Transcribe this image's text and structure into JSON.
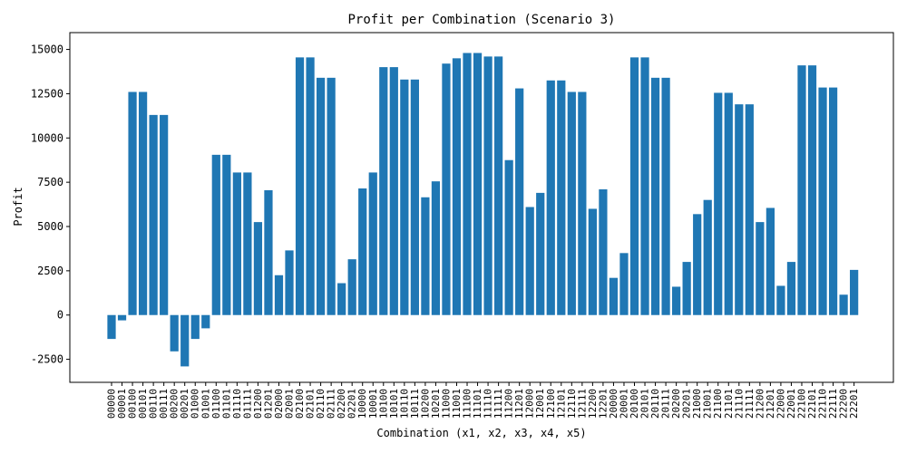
{
  "chart_data": {
    "type": "bar",
    "title": "Profit per Combination (Scenario 3)",
    "xlabel": "Combination (x1, x2, x3, x4, x5)",
    "ylabel": "Profit",
    "ylim": [
      -3800,
      15950
    ],
    "yticks": [
      -2500,
      0,
      2500,
      5000,
      7500,
      10000,
      12500,
      15000
    ],
    "grid": false,
    "bar_color": "#1f77b4",
    "categories": [
      "00000",
      "00001",
      "00100",
      "00101",
      "00110",
      "00111",
      "00200",
      "00201",
      "01000",
      "01001",
      "01100",
      "01101",
      "01110",
      "01111",
      "01200",
      "01201",
      "02000",
      "02001",
      "02100",
      "02101",
      "02110",
      "02111",
      "02200",
      "02201",
      "10000",
      "10001",
      "10100",
      "10101",
      "10110",
      "10111",
      "10200",
      "10201",
      "11000",
      "11001",
      "11100",
      "11101",
      "11110",
      "11111",
      "11200",
      "11201",
      "12000",
      "12001",
      "12100",
      "12101",
      "12110",
      "12111",
      "12200",
      "12201",
      "20000",
      "20001",
      "20100",
      "20101",
      "20110",
      "20111",
      "20200",
      "20201",
      "21000",
      "21001",
      "21100",
      "21101",
      "21110",
      "21111",
      "21200",
      "21201",
      "22000",
      "22001",
      "22100",
      "22101",
      "22110",
      "22111",
      "22200",
      "22201"
    ],
    "values": [
      -1350,
      -300,
      12600,
      12600,
      11300,
      11300,
      -2050,
      -2900,
      -1350,
      -750,
      9050,
      9050,
      8050,
      8050,
      5250,
      7050,
      2250,
      3650,
      14550,
      14550,
      13400,
      13400,
      1800,
      3150,
      7150,
      8050,
      14000,
      14000,
      13300,
      13300,
      6650,
      7550,
      14200,
      14500,
      14800,
      14800,
      14600,
      14600,
      8750,
      12800,
      6100,
      6900,
      13250,
      13250,
      12600,
      12600,
      6000,
      7100,
      2100,
      3500,
      14550,
      14550,
      13400,
      13400,
      1600,
      3000,
      5700,
      6500,
      12550,
      12550,
      11900,
      11900,
      5250,
      6050,
      1650,
      3000,
      14100,
      14100,
      12850,
      12850,
      1150,
      2550
    ]
  }
}
